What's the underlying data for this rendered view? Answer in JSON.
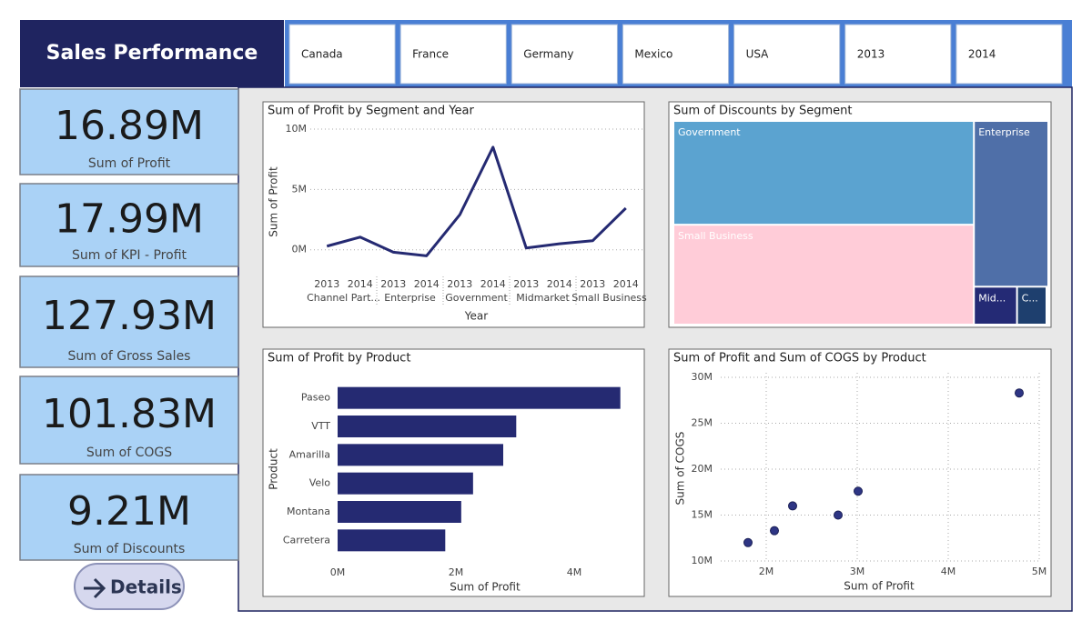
{
  "header": {
    "title": "Sales Performance"
  },
  "slicers": [
    "Canada",
    "France",
    "Germany",
    "Mexico",
    "USA",
    "2013",
    "2014"
  ],
  "kpis": [
    {
      "value": "16.89M",
      "label": "Sum of Profit"
    },
    {
      "value": "17.99M",
      "label": "Sum of KPI - Profit"
    },
    {
      "value": "127.93M",
      "label": "Sum of Gross Sales"
    },
    {
      "value": "101.83M",
      "label": "Sum of COGS"
    },
    {
      "value": "9.21M",
      "label": "Sum of Discounts"
    }
  ],
  "button": {
    "label": "Details"
  },
  "chart_data": [
    {
      "type": "line",
      "title": "Sum of Profit by Segment and Year",
      "categories": [
        "2013",
        "2014",
        "2013",
        "2014",
        "2013",
        "2014",
        "2013",
        "2014",
        "2013",
        "2014"
      ],
      "groups": [
        "Channel Part...",
        "Enterprise",
        "Government",
        "Midmarket",
        "Small Business"
      ],
      "values": [
        300000,
        1050000,
        -200000,
        -500000,
        2900000,
        8500000,
        150000,
        500000,
        750000,
        3450000
      ],
      "color": "#252a72",
      "ylim": [
        -1000000,
        10600000
      ],
      "yticks": [
        {
          "value": 0,
          "label": "0M"
        },
        {
          "value": 5000000,
          "label": "5M"
        },
        {
          "value": 10000000,
          "label": "10M"
        }
      ],
      "grid": true,
      "x_label": "Year",
      "y_label": "Sum of Profit"
    },
    {
      "type": "treemap",
      "title": "Sum of Discounts by Segment",
      "categories": [
        "Government",
        "Small Business",
        "Enterprise",
        "Mid...",
        "C..."
      ],
      "values": [
        3810000,
        3600000,
        1470000,
        190000,
        130000
      ],
      "colors": [
        "#5ba3d0",
        "#ffccd8",
        "#4f6fa8",
        "#242a75",
        "#1e3f6e"
      ]
    },
    {
      "type": "bar",
      "orientation": "horizontal",
      "title": "Sum of Profit by Product",
      "categories": [
        "Paseo",
        "VTT",
        "Amarilla",
        "Velo",
        "Montana",
        "Carretera"
      ],
      "values": [
        4780000,
        3020000,
        2800000,
        2290000,
        2090000,
        1820000
      ],
      "color": "#252a72",
      "xlim": [
        0,
        5000000
      ],
      "xticks": [
        {
          "value": 0,
          "label": "0M"
        },
        {
          "value": 2000000,
          "label": "2M"
        },
        {
          "value": 4000000,
          "label": "4M"
        }
      ],
      "grid": false,
      "x_label": "Sum of Profit",
      "y_label": "Product"
    },
    {
      "type": "scatter",
      "title": "Sum of Profit and Sum of COGS by Product",
      "x": [
        1800000,
        2090000,
        2290000,
        2790000,
        3010000,
        4780000
      ],
      "values": [
        12000000,
        13300000,
        16000000,
        15000000,
        17600000,
        28300000
      ],
      "color": "#2e3584",
      "xlim": [
        1500000,
        5000000
      ],
      "ylim": [
        10000000,
        30500000
      ],
      "xticks": [
        {
          "value": 2000000,
          "label": "2M"
        },
        {
          "value": 3000000,
          "label": "3M"
        },
        {
          "value": 4000000,
          "label": "4M"
        },
        {
          "value": 5000000,
          "label": "5M"
        }
      ],
      "yticks": [
        {
          "value": 10000000,
          "label": "10M"
        },
        {
          "value": 15000000,
          "label": "15M"
        },
        {
          "value": 20000000,
          "label": "20M"
        },
        {
          "value": 25000000,
          "label": "25M"
        },
        {
          "value": 30000000,
          "label": "30M"
        }
      ],
      "grid": true,
      "x_label": "Sum of Profit",
      "y_label": "Sum of COGS"
    }
  ]
}
